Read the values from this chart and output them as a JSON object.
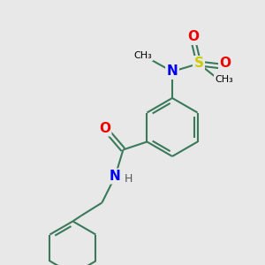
{
  "background_color": "#e8e8e8",
  "bond_color": "#3a7a5a",
  "atom_colors": {
    "N": "#0000ee",
    "O": "#ee0000",
    "S": "#cccc00",
    "C": "#000000",
    "H": "#555555"
  },
  "bond_width": 1.5,
  "figsize": [
    3.0,
    3.0
  ],
  "dpi": 100
}
